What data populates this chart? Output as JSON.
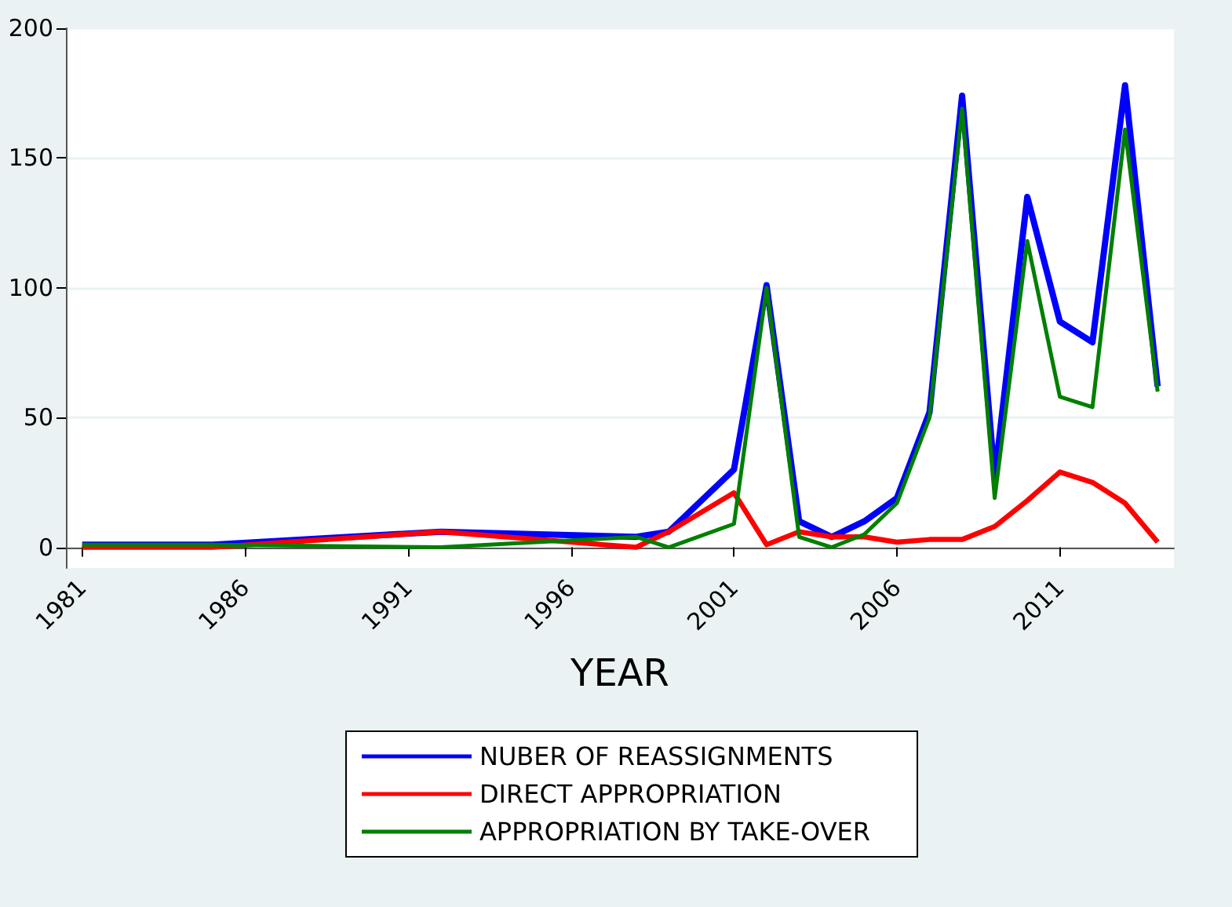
{
  "chart_data": {
    "type": "line",
    "xlabel": "YEAR",
    "x": [
      1981,
      1985,
      1992,
      1998,
      1999,
      2001,
      2002,
      2003,
      2004,
      2005,
      2006,
      2007,
      2008,
      2009,
      2010,
      2011,
      2012,
      2013,
      2014
    ],
    "series": [
      {
        "name": "NUBER OF REASSIGNMENTS",
        "color": "#0000ff",
        "values": [
          1,
          1,
          6,
          4,
          6,
          30,
          101,
          10,
          4,
          10,
          19,
          52,
          174,
          27,
          135,
          87,
          79,
          178,
          62
        ]
      },
      {
        "name": "DIRECT APPROPRIATION",
        "color": "#ff0000",
        "values": [
          0,
          0,
          6,
          0,
          6,
          21,
          1,
          6,
          4,
          4,
          2,
          3,
          3,
          8,
          18,
          29,
          25,
          17,
          2
        ]
      },
      {
        "name": "APPROPRIATION BY TAKE-OVER",
        "color": "#007f00",
        "values": [
          1,
          1,
          0,
          4,
          0,
          9,
          100,
          4,
          0,
          5,
          17,
          50,
          169,
          19,
          118,
          58,
          54,
          161,
          60
        ]
      }
    ],
    "xlim": [
      1980.5,
      2014.5
    ],
    "xticks": [
      1981,
      1986,
      1991,
      1996,
      2001,
      2006,
      2011
    ],
    "ylim": [
      -8,
      200
    ],
    "yticks": [
      0,
      50,
      100,
      150,
      200
    ],
    "grid": "y",
    "legend": "bottom",
    "marker": "none",
    "line_style": "solid"
  }
}
